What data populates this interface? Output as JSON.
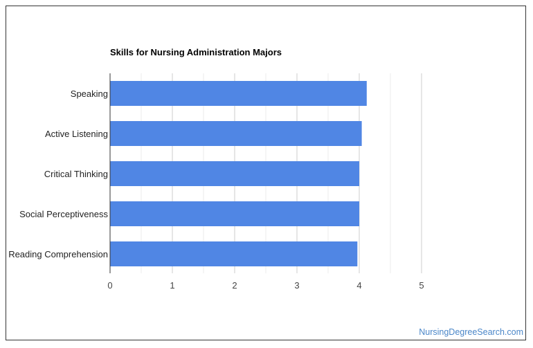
{
  "chart_data": {
    "type": "bar",
    "orientation": "horizontal",
    "title": "Skills for Nursing Administration Majors",
    "categories": [
      "Speaking",
      "Active Listening",
      "Critical Thinking",
      "Social Perceptiveness",
      "Reading Comprehension"
    ],
    "values": [
      4.12,
      4.04,
      4.0,
      4.0,
      3.97
    ],
    "xlim": [
      0,
      5
    ],
    "xticks": [
      "0",
      "1",
      "2",
      "3",
      "4",
      "5"
    ],
    "xlabel": "",
    "ylabel": "",
    "grid": true,
    "bar_color": "#5086e4"
  },
  "watermark": "NursingDegreeSearch.com"
}
